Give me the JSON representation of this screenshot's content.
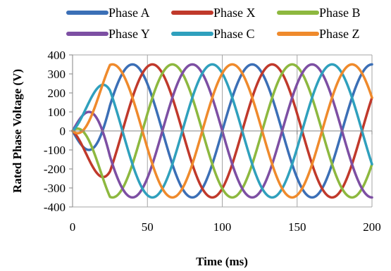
{
  "chart_data": {
    "type": "line",
    "title": "",
    "xlabel": "Time (ms)",
    "ylabel": "Rated Phase Voltage (V)",
    "xlim": [
      0,
      200
    ],
    "ylim": [
      -400,
      400
    ],
    "xticks": [
      0,
      50,
      100,
      150,
      200
    ],
    "yticks": [
      400,
      300,
      200,
      100,
      0,
      -100,
      -200,
      -300,
      -400
    ],
    "grid": "vertical",
    "legend": "top",
    "amplitude_v": 350,
    "period_ms": 80,
    "startup_ms": 25,
    "series": [
      {
        "name": "Phase A",
        "color": "#3b6fb6",
        "phase_deg": -90
      },
      {
        "name": "Phase X",
        "color": "#c0392b",
        "phase_deg": -150
      },
      {
        "name": "Phase B",
        "color": "#8db83f",
        "phase_deg": 150
      },
      {
        "name": "Phase Y",
        "color": "#7d4fa3",
        "phase_deg": 90
      },
      {
        "name": "Phase C",
        "color": "#2fa0bd",
        "phase_deg": 30
      },
      {
        "name": "Phase Z",
        "color": "#ef8a2c",
        "phase_deg": -30
      }
    ]
  }
}
